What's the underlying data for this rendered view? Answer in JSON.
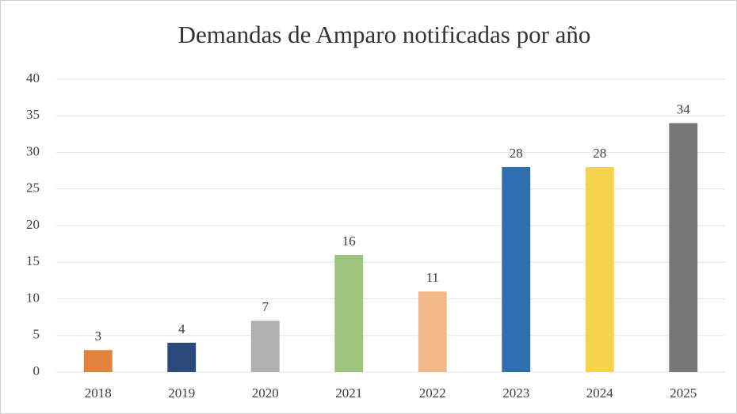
{
  "chart_data": {
    "type": "bar",
    "title": "Demandas de Amparo notificadas por año",
    "categories": [
      "2018",
      "2019",
      "2020",
      "2021",
      "2022",
      "2023",
      "2024",
      "2025"
    ],
    "values": [
      3,
      4,
      7,
      16,
      11,
      28,
      28,
      34
    ],
    "colors": [
      "#e2823f",
      "#2a4a7b",
      "#b0b0b0",
      "#9cc47c",
      "#f2b887",
      "#2f6fb0",
      "#f5d34a",
      "#777777"
    ],
    "ylim": [
      0,
      40
    ],
    "yticks": [
      0,
      5,
      10,
      15,
      20,
      25,
      30,
      35,
      40
    ],
    "grid": true
  }
}
